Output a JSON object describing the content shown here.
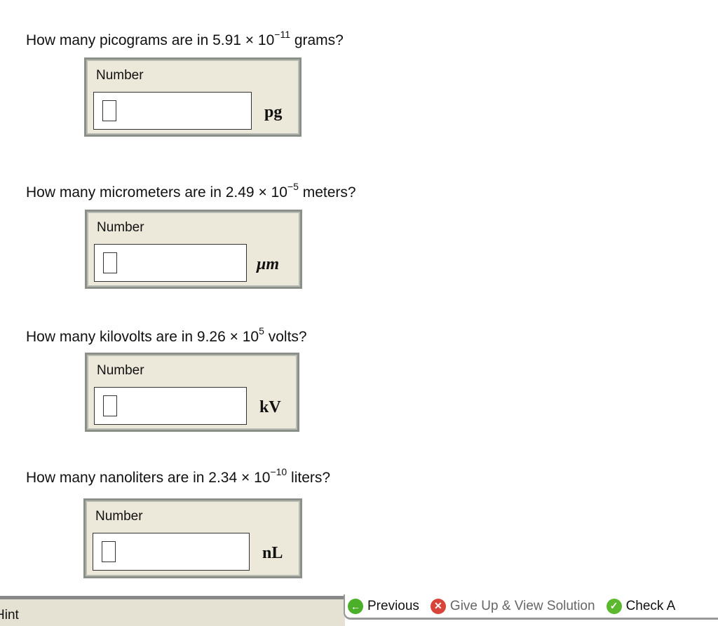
{
  "questions": [
    {
      "pre": "How many picograms are in 5.91 × 10",
      "exp": "−11",
      "post": " grams?",
      "label": "Number",
      "value": "",
      "unit": "pg"
    },
    {
      "pre": "How many micrometers are in 2.49 × 10",
      "exp": "−5",
      "post": " meters?",
      "label": "Number",
      "value": "",
      "unit": "μm"
    },
    {
      "pre": "How many kilovolts are in 9.26 × 10",
      "exp": "5",
      "post": " volts?",
      "label": "Number",
      "value": "",
      "unit": "kV"
    },
    {
      "pre": "How many nanoliters are in 2.34 × 10",
      "exp": "−10",
      "post": " liters?",
      "label": "Number",
      "value": "",
      "unit": "nL"
    }
  ],
  "footer": {
    "hint": "Hint",
    "previous": "Previous",
    "give_up": "Give Up & View Solution",
    "check": "Check A"
  },
  "colors": {
    "box_bg": "#ece8da",
    "previous_icon": "#4caf2a",
    "give_up_icon": "#d9443a",
    "check_icon": "#5cb82e"
  }
}
